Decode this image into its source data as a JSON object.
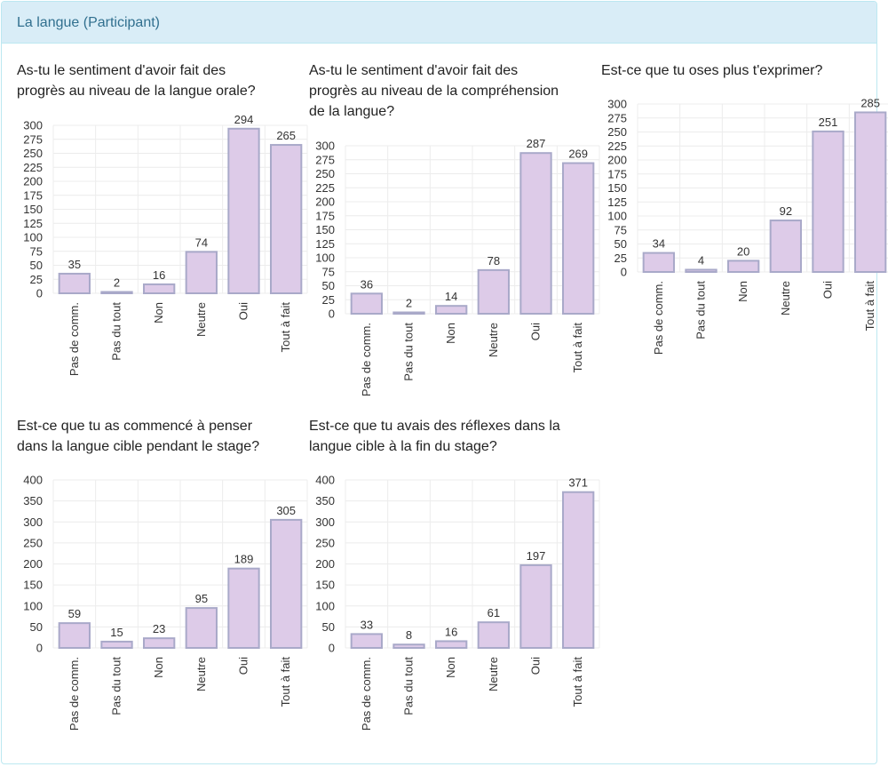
{
  "panel": {
    "title": "La langue (Participant)"
  },
  "bar_fill": "#ddcbe8",
  "bar_stroke": "#a9a9c9",
  "grid_color": "#ececec",
  "chart_data": [
    {
      "type": "bar",
      "title_lines": [
        "As-tu le sentiment d'avoir fait des",
        "progrès au niveau de la langue orale?"
      ],
      "categories": [
        "Pas de comm.",
        "Pas du tout",
        "Non",
        "Neutre",
        "Oui",
        "Tout à fait"
      ],
      "values": [
        35,
        2,
        16,
        74,
        294,
        265
      ],
      "yticks": [
        0,
        25,
        50,
        75,
        100,
        125,
        150,
        175,
        200,
        225,
        250,
        275,
        300
      ],
      "ylim": [
        0,
        300
      ],
      "grid": true,
      "legend": false
    },
    {
      "type": "bar",
      "title_lines": [
        "As-tu le sentiment d'avoir fait des",
        "progrès au niveau de la compréhension",
        "de la langue?"
      ],
      "categories": [
        "Pas de comm.",
        "Pas du tout",
        "Non",
        "Neutre",
        "Oui",
        "Tout à fait"
      ],
      "values": [
        36,
        2,
        14,
        78,
        287,
        269
      ],
      "yticks": [
        0,
        25,
        50,
        75,
        100,
        125,
        150,
        175,
        200,
        225,
        250,
        275,
        300
      ],
      "ylim": [
        0,
        300
      ],
      "grid": true,
      "legend": false
    },
    {
      "type": "bar",
      "title_lines": [
        "Est-ce que tu oses plus t'exprimer?"
      ],
      "categories": [
        "Pas de comm.",
        "Pas du tout",
        "Non",
        "Neutre",
        "Oui",
        "Tout à fait"
      ],
      "values": [
        34,
        4,
        20,
        92,
        251,
        285
      ],
      "yticks": [
        0,
        25,
        50,
        75,
        100,
        125,
        150,
        175,
        200,
        225,
        250,
        275,
        300
      ],
      "ylim": [
        0,
        300
      ],
      "grid": true,
      "legend": false
    },
    {
      "type": "bar",
      "title_lines": [
        "Est-ce que tu as commencé à penser",
        "dans la langue cible pendant le stage?"
      ],
      "categories": [
        "Pas de comm.",
        "Pas du tout",
        "Non",
        "Neutre",
        "Oui",
        "Tout à fait"
      ],
      "values": [
        59,
        15,
        23,
        95,
        189,
        305
      ],
      "yticks": [
        0,
        50,
        100,
        150,
        200,
        250,
        300,
        350,
        400
      ],
      "ylim": [
        0,
        400
      ],
      "grid": true,
      "legend": false
    },
    {
      "type": "bar",
      "title_lines": [
        "Est-ce que tu avais des réflexes dans la",
        "langue cible à la fin du stage?"
      ],
      "categories": [
        "Pas de comm.",
        "Pas du tout",
        "Non",
        "Neutre",
        "Oui",
        "Tout à fait"
      ],
      "values": [
        33,
        8,
        16,
        61,
        197,
        371
      ],
      "yticks": [
        0,
        50,
        100,
        150,
        200,
        250,
        300,
        350,
        400
      ],
      "ylim": [
        0,
        400
      ],
      "grid": true,
      "legend": false
    }
  ]
}
